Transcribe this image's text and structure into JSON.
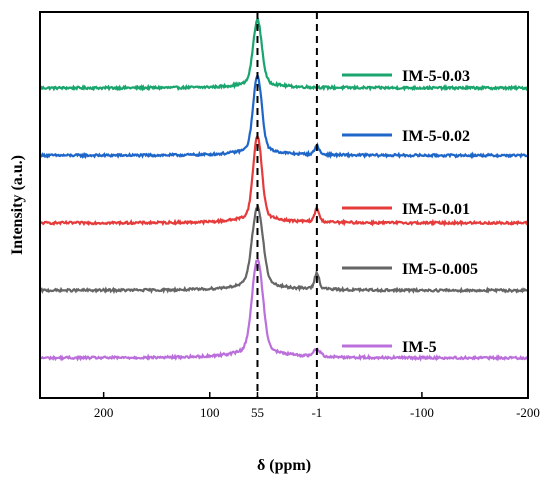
{
  "chart_data": {
    "type": "line",
    "xlabel": "δ (ppm)",
    "ylabel": "Intensity (a.u.)",
    "xlim": [
      260,
      -200
    ],
    "x_reversed": true,
    "x_ticks": [
      200,
      100,
      55,
      -1,
      -100,
      -200
    ],
    "x_tick_labels": [
      "200",
      "100",
      "55",
      "-1",
      "-100",
      "-200"
    ],
    "y_ticks": [],
    "grid": false,
    "legend_placement": "inline-right",
    "reference_lines": [
      55,
      -1
    ],
    "series": [
      {
        "name": "IM-5-0.03",
        "color": "#1aa56e",
        "baseline": 4.0,
        "peaks": [
          {
            "x": 55,
            "height": 0.9,
            "width": 4
          }
        ]
      },
      {
        "name": "IM-5-0.02",
        "color": "#1f66c9",
        "baseline": 3.0,
        "peaks": [
          {
            "x": 55,
            "height": 1.05,
            "width": 4
          },
          {
            "x": -1,
            "height": 0.12,
            "width": 2
          }
        ]
      },
      {
        "name": "IM-5-0.01",
        "color": "#e53b3b",
        "baseline": 2.0,
        "peaks": [
          {
            "x": 55,
            "height": 1.15,
            "width": 4
          },
          {
            "x": -1,
            "height": 0.18,
            "width": 2
          }
        ]
      },
      {
        "name": "IM-5-0.005",
        "color": "#666666",
        "baseline": 1.0,
        "peaks": [
          {
            "x": 55,
            "height": 1.1,
            "width": 5
          },
          {
            "x": -1,
            "height": 0.22,
            "width": 2
          }
        ]
      },
      {
        "name": "IM-5",
        "color": "#bb6fdb",
        "baseline": 0.0,
        "peaks": [
          {
            "x": 55,
            "height": 1.3,
            "width": 5
          },
          {
            "x": -1,
            "height": 0.1,
            "width": 3
          }
        ]
      }
    ]
  }
}
